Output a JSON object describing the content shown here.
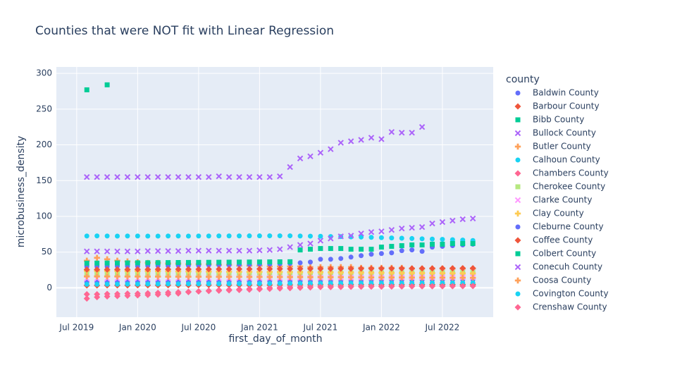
{
  "chart_data": {
    "type": "scatter",
    "title": "Counties that were NOT fit with Linear Regression",
    "x_label": "first_day_of_month",
    "y_label": "microbusiness_density",
    "legend_title": "county",
    "x": [
      "2019-08",
      "2019-09",
      "2019-10",
      "2019-11",
      "2019-12",
      "2020-01",
      "2020-02",
      "2020-03",
      "2020-04",
      "2020-05",
      "2020-06",
      "2020-07",
      "2020-08",
      "2020-09",
      "2020-10",
      "2020-11",
      "2020-12",
      "2021-01",
      "2021-02",
      "2021-03",
      "2021-04",
      "2021-05",
      "2021-06",
      "2021-07",
      "2021-08",
      "2021-09",
      "2021-10",
      "2021-11",
      "2021-12",
      "2022-01",
      "2022-02",
      "2022-03",
      "2022-04",
      "2022-05",
      "2022-06",
      "2022-07",
      "2022-08",
      "2022-09",
      "2022-10"
    ],
    "xlim": [
      "2019-05",
      "2022-12"
    ],
    "xticks": [
      {
        "value": "2019-07",
        "label": "Jul 2019"
      },
      {
        "value": "2020-01",
        "label": "Jan 2020"
      },
      {
        "value": "2020-07",
        "label": "Jul 2020"
      },
      {
        "value": "2021-01",
        "label": "Jan 2021"
      },
      {
        "value": "2021-07",
        "label": "Jul 2021"
      },
      {
        "value": "2022-01",
        "label": "Jan 2022"
      },
      {
        "value": "2022-07",
        "label": "Jul 2022"
      }
    ],
    "ylim": [
      -41,
      309
    ],
    "yticks": [
      0,
      50,
      100,
      150,
      200,
      250,
      300
    ],
    "grid": true,
    "series": [
      {
        "name": "Baldwin County",
        "color": "#636efa",
        "symbol": "circle",
        "values": [
          8.2,
          8.3,
          8.3,
          8.4,
          8.4,
          8.5,
          8.5,
          8.6,
          8.6,
          8.7,
          8.8,
          8.8,
          8.9,
          9.0,
          9.0,
          9.1,
          9.2,
          9.3,
          9.4,
          9.5,
          9.6,
          9.7,
          9.8,
          9.9,
          10.0,
          10.1,
          10.2,
          10.3,
          10.4,
          10.5,
          10.6,
          10.7,
          10.8,
          10.9,
          11.0,
          11.1,
          11.2,
          11.3,
          11.4
        ]
      },
      {
        "name": "Barbour County",
        "color": "#EF553B",
        "symbol": "diamond",
        "values": [
          3.4,
          3.4,
          3.5,
          3.5,
          3.5,
          3.6,
          3.6,
          3.6,
          3.7,
          3.7,
          3.7,
          3.8,
          3.8,
          3.8,
          3.9,
          3.9,
          3.9,
          4.0,
          4.0,
          4.0,
          4.1,
          4.1,
          4.1,
          4.2,
          4.2,
          4.2,
          4.3,
          4.3,
          4.3,
          4.4,
          4.4,
          4.4,
          4.5,
          4.5,
          4.5,
          4.6,
          4.6,
          4.6,
          4.7
        ]
      },
      {
        "name": "Bibb County",
        "color": "#00cc96",
        "symbol": "square",
        "values": [
          277,
          null,
          284,
          null,
          null,
          null,
          null,
          null,
          null,
          null,
          null,
          null,
          null,
          null,
          null,
          null,
          null,
          null,
          null,
          null,
          null,
          null,
          null,
          null,
          null,
          null,
          null,
          null,
          null,
          null,
          null,
          null,
          null,
          null,
          null,
          null,
          null,
          null,
          null
        ]
      },
      {
        "name": "Bullock County",
        "color": "#ab63fa",
        "symbol": "x",
        "values": [
          155,
          155,
          155,
          155,
          155,
          155,
          155,
          155,
          155,
          155,
          155,
          155,
          155,
          156,
          155,
          155,
          155,
          155,
          155,
          156,
          169,
          181,
          184,
          189,
          194,
          203,
          205,
          207,
          210,
          208,
          218,
          217,
          217,
          225,
          null,
          null,
          null,
          null,
          null
        ]
      },
      {
        "name": "Butler County",
        "color": "#FFA15A",
        "symbol": "cross",
        "values": [
          38,
          42,
          40,
          38,
          37,
          36,
          35,
          35,
          34,
          34,
          33,
          33,
          33,
          32,
          32,
          31,
          31,
          31,
          30,
          30,
          30,
          30,
          29,
          29,
          29,
          29,
          29,
          28,
          28,
          28,
          28,
          28,
          27,
          27,
          27,
          27,
          27,
          27,
          27
        ]
      },
      {
        "name": "Calhoun County",
        "color": "#19d3f3",
        "symbol": "circle",
        "values": [
          72.5,
          72.6,
          72.5,
          72.4,
          72.5,
          72.5,
          72.4,
          72.4,
          72.5,
          72.5,
          72.4,
          72.5,
          72.5,
          72.6,
          72.6,
          72.6,
          72.7,
          72.7,
          72.8,
          72.8,
          72.8,
          72.5,
          72.3,
          72.1,
          71.8,
          71.6,
          71.3,
          71.0,
          70.6,
          70.2,
          69.8,
          69.4,
          69.0,
          68.6,
          68.2,
          67.8,
          67.3,
          66.8,
          66.2
        ]
      },
      {
        "name": "Chambers County",
        "color": "#FF6692",
        "symbol": "diamond",
        "values": [
          -15,
          -13,
          -12,
          -11.5,
          -11,
          -10.5,
          -10,
          -9.5,
          -9,
          -8,
          -6,
          -5,
          -4,
          -3,
          -2.5,
          -2,
          -1.5,
          -1,
          0,
          0.5,
          1,
          1.2,
          1.4,
          1.5,
          1.6,
          1.7,
          1.8,
          1.9,
          2,
          2,
          2.1,
          2.1,
          2.2,
          2.2,
          2.3,
          2.3,
          2.4,
          2.4,
          2.5
        ]
      },
      {
        "name": "Cherokee County",
        "color": "#B6E880",
        "symbol": "square",
        "values": [
          19.5,
          19.6,
          19.6,
          19.7,
          19.7,
          19.8,
          19.8,
          19.9,
          19.9,
          20.0,
          20.0,
          20.1,
          20.1,
          20.2,
          20.2,
          20.3,
          20.3,
          20.4,
          20.4,
          20.5,
          20.5,
          20.6,
          20.6,
          20.7,
          20.7,
          20.8,
          20.8,
          20.9,
          20.9,
          21.0,
          21.0,
          21.1,
          21.1,
          21.2,
          21.2,
          21.3,
          21.3,
          21.4,
          21.4
        ]
      },
      {
        "name": "Clarke County",
        "color": "#FF97FF",
        "symbol": "x",
        "values": [
          13.0,
          13.0,
          13.1,
          13.1,
          13.2,
          13.2,
          13.3,
          13.3,
          13.4,
          13.4,
          13.5,
          13.5,
          13.6,
          13.6,
          13.7,
          13.7,
          13.8,
          13.8,
          13.9,
          13.9,
          14.0,
          14.0,
          14.1,
          14.1,
          14.2,
          14.2,
          14.3,
          14.3,
          14.4,
          14.4,
          14.5,
          14.5,
          14.6,
          14.6,
          14.7,
          14.7,
          14.8,
          14.8,
          14.9
        ]
      },
      {
        "name": "Clay County",
        "color": "#FECB52",
        "symbol": "cross",
        "values": [
          24.0,
          23.9,
          23.8,
          23.7,
          23.6,
          23.5,
          23.4,
          23.3,
          23.2,
          23.1,
          23.0,
          22.9,
          22.8,
          22.7,
          22.6,
          22.5,
          22.4,
          22.3,
          22.2,
          22.1,
          22.0,
          21.9,
          21.8,
          21.7,
          21.6,
          21.5,
          21.4,
          21.3,
          21.2,
          21.1,
          21.0,
          20.9,
          20.8,
          20.7,
          20.6,
          20.5,
          20.4,
          20.3,
          20.2
        ]
      },
      {
        "name": "Cleburne County",
        "color": "#636efa",
        "symbol": "circle",
        "values": [
          30,
          30,
          30,
          30.5,
          30.5,
          30.5,
          31,
          31,
          31,
          31.5,
          31.5,
          31.5,
          32,
          32,
          32,
          32.5,
          32.5,
          33,
          33,
          33.5,
          34,
          35,
          36,
          40,
          40,
          41,
          43,
          45,
          47,
          48,
          49,
          52,
          53,
          51,
          57,
          58,
          59,
          60,
          61
        ]
      },
      {
        "name": "Coffee County",
        "color": "#EF553B",
        "symbol": "diamond",
        "values": [
          25.5,
          25.6,
          25.6,
          25.7,
          25.7,
          25.8,
          25.8,
          25.9,
          25.9,
          26.0,
          26.0,
          26.1,
          26.1,
          26.2,
          26.2,
          26.3,
          26.3,
          26.4,
          26.4,
          26.5,
          26.5,
          26.6,
          26.6,
          26.7,
          26.7,
          26.8,
          26.8,
          26.9,
          26.9,
          27.0,
          27.0,
          27.1,
          27.1,
          27.2,
          27.2,
          27.3,
          27.3,
          27.4,
          27.4
        ]
      },
      {
        "name": "Colbert County",
        "color": "#00cc96",
        "symbol": "square",
        "values": [
          34.5,
          34.6,
          34.7,
          34.8,
          34.9,
          35.0,
          35.1,
          35.2,
          35.3,
          35.4,
          35.5,
          35.6,
          35.7,
          35.8,
          35.9,
          36.0,
          36.1,
          36.2,
          36.3,
          36.4,
          36.5,
          53,
          54,
          55,
          55,
          55,
          54,
          54,
          54,
          57,
          58,
          59,
          60,
          60,
          61,
          61,
          62,
          62,
          62
        ]
      },
      {
        "name": "Conecuh County",
        "color": "#ab63fa",
        "symbol": "x",
        "values": [
          51,
          51,
          51,
          51,
          51,
          51,
          51.5,
          51.5,
          51.5,
          51.5,
          52,
          52,
          52,
          52,
          52,
          52,
          52,
          52.5,
          53,
          54,
          57,
          60,
          62,
          66,
          69,
          72,
          73,
          76,
          78,
          79,
          81,
          83,
          84,
          85,
          90,
          92,
          94,
          96,
          97
        ]
      },
      {
        "name": "Coosa County",
        "color": "#FFA15A",
        "symbol": "cross",
        "values": [
          16,
          16,
          15.9,
          15.9,
          15.8,
          15.8,
          15.7,
          15.7,
          15.6,
          15.6,
          15.5,
          15.5,
          15.4,
          15.4,
          15.3,
          15.3,
          15.2,
          15.2,
          15.1,
          15.1,
          15.0,
          15.0,
          14.9,
          14.9,
          14.8,
          14.8,
          14.7,
          14.7,
          14.6,
          14.6,
          14.5,
          14.5,
          14.4,
          14.4,
          14.3,
          14.3,
          14.2,
          14.2,
          14.1
        ]
      },
      {
        "name": "Covington County",
        "color": "#19d3f3",
        "symbol": "circle",
        "values": [
          5.0,
          5.0,
          5.1,
          5.1,
          5.2,
          5.2,
          5.3,
          5.3,
          5.4,
          5.4,
          5.5,
          5.5,
          5.6,
          5.6,
          5.7,
          5.7,
          5.8,
          5.8,
          5.9,
          5.9,
          6.0,
          6.0,
          6.1,
          6.1,
          6.2,
          6.2,
          6.3,
          6.3,
          6.4,
          6.4,
          6.5,
          6.5,
          6.6,
          6.6,
          6.7,
          6.7,
          6.8,
          6.8,
          6.9
        ]
      },
      {
        "name": "Crenshaw County",
        "color": "#FF6692",
        "symbol": "diamond",
        "values": [
          -9,
          -9,
          -8.5,
          -8.5,
          -8,
          -8,
          -7.5,
          -7,
          -6.5,
          -6,
          -5.5,
          -5,
          -4.5,
          -4,
          -3.5,
          -3,
          -2.5,
          -2,
          -1.5,
          -1,
          -0.5,
          0,
          0.5,
          1,
          1,
          1.2,
          1.4,
          1.5,
          1.6,
          1.7,
          1.8,
          1.9,
          2,
          2.1,
          2.2,
          2.3,
          2.4,
          2.5,
          2.6
        ]
      }
    ]
  }
}
